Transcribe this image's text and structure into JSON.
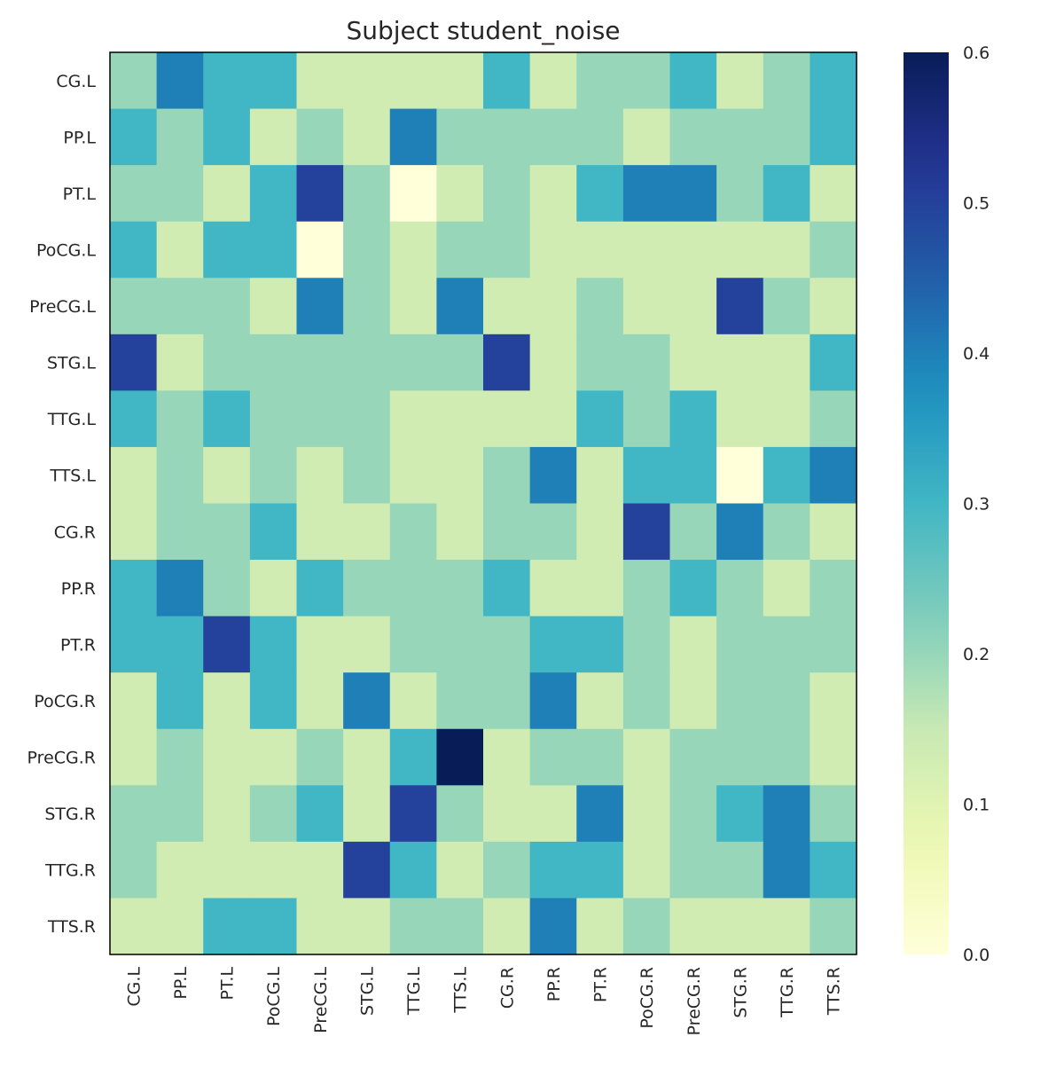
{
  "chart_data": {
    "type": "heatmap",
    "title": "Subject student_noise",
    "row_labels": [
      "CG.L",
      "PP.L",
      "PT.L",
      "PoCG.L",
      "PreCG.L",
      "STG.L",
      "TTG.L",
      "TTS.L",
      "CG.R",
      "PP.R",
      "PT.R",
      "PoCG.R",
      "PreCG.R",
      "STG.R",
      "TTG.R",
      "TTS.R"
    ],
    "col_labels": [
      "CG.L",
      "PP.L",
      "PT.L",
      "PoCG.L",
      "PreCG.L",
      "STG.L",
      "TTG.L",
      "TTS.L",
      "CG.R",
      "PP.R",
      "PT.R",
      "PoCG.R",
      "PreCG.R",
      "STG.R",
      "TTG.R",
      "TTS.R"
    ],
    "values": [
      [
        0.2,
        0.4,
        0.3,
        0.3,
        0.133,
        0.133,
        0.133,
        0.133,
        0.3,
        0.133,
        0.2,
        0.2,
        0.3,
        0.133,
        0.2,
        0.3
      ],
      [
        0.3,
        0.2,
        0.3,
        0.133,
        0.2,
        0.133,
        0.4,
        0.2,
        0.2,
        0.2,
        0.2,
        0.133,
        0.2,
        0.2,
        0.2,
        0.3
      ],
      [
        0.2,
        0.2,
        0.133,
        0.3,
        0.5,
        0.2,
        0.0,
        0.133,
        0.2,
        0.133,
        0.3,
        0.4,
        0.4,
        0.2,
        0.3,
        0.133
      ],
      [
        0.3,
        0.133,
        0.3,
        0.3,
        0.0,
        0.2,
        0.133,
        0.2,
        0.2,
        0.133,
        0.133,
        0.133,
        0.133,
        0.133,
        0.133,
        0.2
      ],
      [
        0.2,
        0.2,
        0.2,
        0.133,
        0.4,
        0.2,
        0.133,
        0.4,
        0.133,
        0.133,
        0.2,
        0.133,
        0.133,
        0.5,
        0.2,
        0.133
      ],
      [
        0.5,
        0.133,
        0.2,
        0.2,
        0.2,
        0.2,
        0.2,
        0.2,
        0.5,
        0.133,
        0.2,
        0.2,
        0.133,
        0.133,
        0.133,
        0.3
      ],
      [
        0.3,
        0.2,
        0.3,
        0.2,
        0.2,
        0.2,
        0.133,
        0.133,
        0.133,
        0.133,
        0.3,
        0.2,
        0.3,
        0.133,
        0.133,
        0.2
      ],
      [
        0.133,
        0.2,
        0.133,
        0.2,
        0.133,
        0.2,
        0.133,
        0.133,
        0.2,
        0.4,
        0.133,
        0.3,
        0.3,
        0.0,
        0.3,
        0.4
      ],
      [
        0.133,
        0.2,
        0.2,
        0.3,
        0.133,
        0.133,
        0.2,
        0.133,
        0.2,
        0.2,
        0.133,
        0.5,
        0.2,
        0.4,
        0.2,
        0.133
      ],
      [
        0.3,
        0.4,
        0.2,
        0.133,
        0.3,
        0.2,
        0.2,
        0.2,
        0.3,
        0.133,
        0.133,
        0.2,
        0.3,
        0.2,
        0.133,
        0.2
      ],
      [
        0.3,
        0.3,
        0.5,
        0.3,
        0.133,
        0.133,
        0.2,
        0.2,
        0.2,
        0.3,
        0.3,
        0.2,
        0.133,
        0.2,
        0.2,
        0.2
      ],
      [
        0.133,
        0.3,
        0.133,
        0.3,
        0.133,
        0.4,
        0.133,
        0.2,
        0.2,
        0.4,
        0.133,
        0.2,
        0.133,
        0.2,
        0.2,
        0.133
      ],
      [
        0.133,
        0.2,
        0.133,
        0.133,
        0.2,
        0.133,
        0.3,
        0.6,
        0.133,
        0.2,
        0.2,
        0.133,
        0.2,
        0.2,
        0.2,
        0.133
      ],
      [
        0.2,
        0.2,
        0.133,
        0.2,
        0.3,
        0.133,
        0.5,
        0.2,
        0.133,
        0.133,
        0.4,
        0.133,
        0.2,
        0.3,
        0.4,
        0.2
      ],
      [
        0.2,
        0.133,
        0.133,
        0.133,
        0.133,
        0.5,
        0.3,
        0.133,
        0.2,
        0.3,
        0.3,
        0.133,
        0.2,
        0.2,
        0.4,
        0.3
      ],
      [
        0.133,
        0.133,
        0.3,
        0.3,
        0.133,
        0.133,
        0.2,
        0.2,
        0.133,
        0.4,
        0.133,
        0.2,
        0.133,
        0.133,
        0.133,
        0.2
      ]
    ],
    "colorbar": {
      "min": 0.0,
      "max": 0.6,
      "ticks": [
        "0.0",
        "0.1",
        "0.2",
        "0.3",
        "0.4",
        "0.5",
        "0.6"
      ],
      "colormap": "YlGnBu"
    },
    "grid": false,
    "legend": "right colorbar"
  }
}
